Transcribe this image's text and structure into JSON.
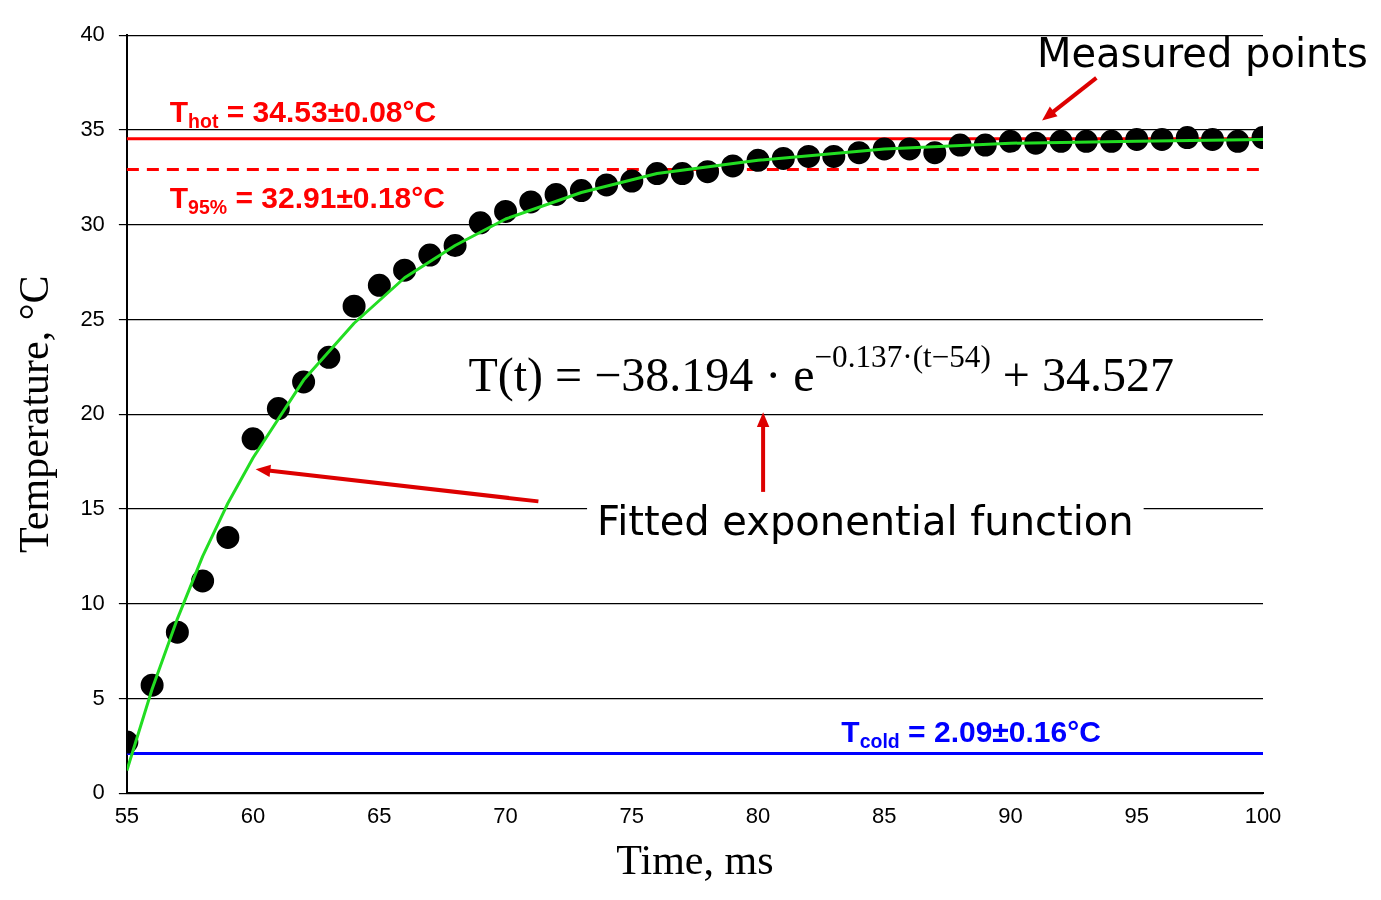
{
  "chart_data": {
    "type": "scatter",
    "xlabel": "Time, ms",
    "ylabel": "Temperature, °C",
    "xlim": [
      55,
      100
    ],
    "xticks": [
      55,
      60,
      65,
      70,
      75,
      80,
      85,
      90,
      95,
      100
    ],
    "ylim": [
      0,
      40
    ],
    "yticks": [
      0,
      5,
      10,
      15,
      20,
      25,
      30,
      35,
      40
    ],
    "grid": "y",
    "legend": false,
    "series": [
      {
        "type": "line",
        "color": "#22dd22",
        "marker": "none",
        "line_style": "solid",
        "x": [
          55,
          56,
          57,
          58,
          59,
          60,
          62,
          64,
          66,
          68,
          70,
          73,
          76,
          80,
          85,
          90,
          95,
          100
        ],
        "values": [
          1.2,
          5.5,
          9.2,
          12.5,
          15.3,
          17.7,
          21.8,
          24.8,
          27.2,
          28.9,
          30.3,
          31.7,
          32.7,
          33.4,
          34.0,
          34.3,
          34.4,
          34.5
        ]
      },
      {
        "type": "scatter",
        "color": "#000000",
        "marker": "circle",
        "x": [
          55,
          56,
          57,
          58,
          59,
          60,
          61,
          62,
          63,
          64,
          65,
          66,
          67,
          68,
          69,
          70,
          71,
          72,
          73,
          74,
          75,
          76,
          77,
          78,
          79,
          80,
          81,
          82,
          83,
          84,
          85,
          86,
          87,
          88,
          89,
          90,
          91,
          92,
          93,
          94,
          95,
          96,
          97,
          98,
          99,
          100
        ],
        "values": [
          2.7,
          5.7,
          8.5,
          11.2,
          13.5,
          18.7,
          20.3,
          21.7,
          23.0,
          25.7,
          26.8,
          27.6,
          28.4,
          28.9,
          30.1,
          30.7,
          31.2,
          31.6,
          31.8,
          32.1,
          32.3,
          32.7,
          32.7,
          32.8,
          33.1,
          33.4,
          33.5,
          33.6,
          33.6,
          33.8,
          34.0,
          34.0,
          33.8,
          34.2,
          34.2,
          34.4,
          34.3,
          34.4,
          34.4,
          34.4,
          34.5,
          34.5,
          34.6,
          34.5,
          34.4,
          34.6
        ]
      }
    ],
    "ref_lines": [
      {
        "axis": "y",
        "value": 34.53,
        "label": "T$_{hot}$ = 34.53±0.08°C",
        "color": "#ff0000",
        "line_style": "solid"
      },
      {
        "axis": "y",
        "value": 32.91,
        "label": "T$_{95%}$ = 32.91±0.18°C",
        "color": "#ff0000",
        "line_style": "dashed"
      },
      {
        "axis": "y",
        "value": 2.09,
        "label": "T$_{cold}$ = 2.09±0.16°C",
        "color": "#0000ff",
        "line_style": "solid"
      }
    ],
    "annotations": [
      "Measured points",
      "T(t) = −38.194 · e$^{−0.137·(t−54)}$ + 34.527",
      "Fitted exponential function"
    ]
  }
}
